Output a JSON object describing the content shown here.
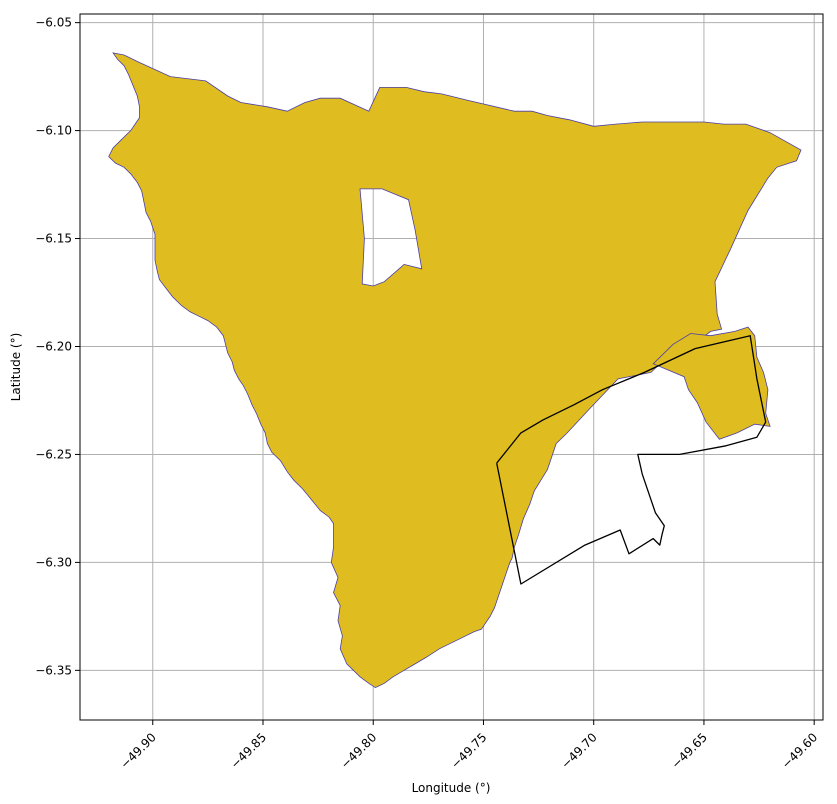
{
  "chart_data": {
    "type": "map",
    "xlabel": "Longitude (°)",
    "ylabel": "Latitude (°)",
    "xlim": [
      -49.933,
      -49.596
    ],
    "ylim": [
      -6.373,
      -6.046
    ],
    "grid": true,
    "x_ticks": [
      {
        "value": -49.9,
        "label": "−49.90"
      },
      {
        "value": -49.85,
        "label": "−49.85"
      },
      {
        "value": -49.8,
        "label": "−49.80"
      },
      {
        "value": -49.75,
        "label": "−49.75"
      },
      {
        "value": -49.7,
        "label": "−49.70"
      },
      {
        "value": -49.65,
        "label": "−49.65"
      },
      {
        "value": -49.6,
        "label": "−49.60"
      }
    ],
    "y_ticks": [
      {
        "value": -6.05,
        "label": "−6.05"
      },
      {
        "value": -6.1,
        "label": "−6.10"
      },
      {
        "value": -6.15,
        "label": "−6.15"
      },
      {
        "value": -6.2,
        "label": "−6.20"
      },
      {
        "value": -6.25,
        "label": "−6.25"
      },
      {
        "value": -6.3,
        "label": "−6.30"
      },
      {
        "value": -6.35,
        "label": "−6.35"
      }
    ],
    "colors": {
      "fill": "#dfbc1f",
      "fill_edge": "#4b3fa8",
      "outline": "#000000",
      "grid": "#b0b0b0"
    },
    "polygons": [
      {
        "kind": "main-region",
        "exterior": [
          [
            -49.918,
            -6.064
          ],
          [
            -49.913,
            -6.065
          ],
          [
            -49.907,
            -6.068
          ],
          [
            -49.892,
            -6.075
          ],
          [
            -49.876,
            -6.077
          ],
          [
            -49.866,
            -6.084
          ],
          [
            -49.86,
            -6.087
          ],
          [
            -49.848,
            -6.089
          ],
          [
            -49.839,
            -6.091
          ],
          [
            -49.831,
            -6.087
          ],
          [
            -49.824,
            -6.085
          ],
          [
            -49.815,
            -6.085
          ],
          [
            -49.802,
            -6.091
          ],
          [
            -49.797,
            -6.08
          ],
          [
            -49.785,
            -6.08
          ],
          [
            -49.777,
            -6.082
          ],
          [
            -49.769,
            -6.083
          ],
          [
            -49.757,
            -6.086
          ],
          [
            -49.736,
            -6.091
          ],
          [
            -49.728,
            -6.091
          ],
          [
            -49.721,
            -6.093
          ],
          [
            -49.711,
            -6.095
          ],
          [
            -49.7,
            -6.098
          ],
          [
            -49.69,
            -6.097
          ],
          [
            -49.678,
            -6.096
          ],
          [
            -49.662,
            -6.096
          ],
          [
            -49.65,
            -6.096
          ],
          [
            -49.641,
            -6.097
          ],
          [
            -49.631,
            -6.097
          ],
          [
            -49.62,
            -6.101
          ],
          [
            -49.606,
            -6.109
          ],
          [
            -49.608,
            -6.114
          ],
          [
            -49.617,
            -6.117
          ],
          [
            -49.621,
            -6.122
          ],
          [
            -49.63,
            -6.137
          ],
          [
            -49.638,
            -6.155
          ],
          [
            -49.645,
            -6.17
          ],
          [
            -49.644,
            -6.185
          ],
          [
            -49.642,
            -6.192
          ],
          [
            -49.647,
            -6.193
          ],
          [
            -49.652,
            -6.197
          ],
          [
            -49.657,
            -6.199
          ],
          [
            -49.662,
            -6.202
          ],
          [
            -49.668,
            -6.206
          ],
          [
            -49.674,
            -6.212
          ],
          [
            -49.689,
            -6.215
          ],
          [
            -49.702,
            -6.229
          ],
          [
            -49.712,
            -6.24
          ],
          [
            -49.717,
            -6.245
          ],
          [
            -49.719,
            -6.251
          ],
          [
            -49.721,
            -6.257
          ],
          [
            -49.724,
            -6.262
          ],
          [
            -49.727,
            -6.267
          ],
          [
            -49.729,
            -6.273
          ],
          [
            -49.732,
            -6.28
          ],
          [
            -49.734,
            -6.287
          ],
          [
            -49.736,
            -6.293
          ],
          [
            -49.737,
            -6.298
          ],
          [
            -49.738,
            -6.3
          ],
          [
            -49.74,
            -6.306
          ],
          [
            -49.742,
            -6.312
          ],
          [
            -49.744,
            -6.318
          ],
          [
            -49.745,
            -6.321
          ],
          [
            -49.747,
            -6.325
          ],
          [
            -49.749,
            -6.328
          ],
          [
            -49.751,
            -6.331
          ],
          [
            -49.754,
            -6.332
          ],
          [
            -49.758,
            -6.334
          ],
          [
            -49.764,
            -6.337
          ],
          [
            -49.77,
            -6.34
          ],
          [
            -49.776,
            -6.344
          ],
          [
            -49.781,
            -6.347
          ],
          [
            -49.786,
            -6.35
          ],
          [
            -49.791,
            -6.353
          ],
          [
            -49.795,
            -6.356
          ],
          [
            -49.799,
            -6.358
          ],
          [
            -49.802,
            -6.356
          ],
          [
            -49.806,
            -6.353
          ],
          [
            -49.809,
            -6.35
          ],
          [
            -49.812,
            -6.347
          ],
          [
            -49.815,
            -6.34
          ],
          [
            -49.814,
            -6.334
          ],
          [
            -49.816,
            -6.327
          ],
          [
            -49.815,
            -6.32
          ],
          [
            -49.818,
            -6.314
          ],
          [
            -49.816,
            -6.307
          ],
          [
            -49.819,
            -6.3
          ],
          [
            -49.818,
            -6.293
          ],
          [
            -49.818,
            -6.287
          ],
          [
            -49.818,
            -6.282
          ],
          [
            -49.82,
            -6.279
          ],
          [
            -49.824,
            -6.276
          ],
          [
            -49.828,
            -6.271
          ],
          [
            -49.832,
            -6.266
          ],
          [
            -49.836,
            -6.262
          ],
          [
            -49.839,
            -6.258
          ],
          [
            -49.842,
            -6.253
          ],
          [
            -49.846,
            -6.249
          ],
          [
            -49.848,
            -6.245
          ],
          [
            -49.849,
            -6.24
          ],
          [
            -49.851,
            -6.236
          ],
          [
            -49.853,
            -6.231
          ],
          [
            -49.855,
            -6.227
          ],
          [
            -49.857,
            -6.222
          ],
          [
            -49.859,
            -6.218
          ],
          [
            -49.861,
            -6.215
          ],
          [
            -49.863,
            -6.211
          ],
          [
            -49.864,
            -6.207
          ],
          [
            -49.866,
            -6.203
          ],
          [
            -49.867,
            -6.199
          ],
          [
            -49.868,
            -6.195
          ],
          [
            -49.871,
            -6.191
          ],
          [
            -49.875,
            -6.188
          ],
          [
            -49.879,
            -6.186
          ],
          [
            -49.883,
            -6.184
          ],
          [
            -49.887,
            -6.181
          ],
          [
            -49.891,
            -6.177
          ],
          [
            -49.894,
            -6.173
          ],
          [
            -49.897,
            -6.169
          ],
          [
            -49.898,
            -6.165
          ],
          [
            -49.899,
            -6.16
          ],
          [
            -49.899,
            -6.154
          ],
          [
            -49.899,
            -6.148
          ],
          [
            -49.901,
            -6.142
          ],
          [
            -49.903,
            -6.138
          ],
          [
            -49.904,
            -6.133
          ],
          [
            -49.905,
            -6.128
          ],
          [
            -49.907,
            -6.124
          ],
          [
            -49.91,
            -6.12
          ],
          [
            -49.913,
            -6.117
          ],
          [
            -49.917,
            -6.115
          ],
          [
            -49.92,
            -6.112
          ],
          [
            -49.918,
            -6.108
          ],
          [
            -49.914,
            -6.104
          ],
          [
            -49.91,
            -6.1
          ],
          [
            -49.908,
            -6.097
          ],
          [
            -49.906,
            -6.094
          ],
          [
            -49.906,
            -6.089
          ],
          [
            -49.907,
            -6.084
          ],
          [
            -49.909,
            -6.079
          ],
          [
            -49.911,
            -6.074
          ],
          [
            -49.913,
            -6.07
          ],
          [
            -49.916,
            -6.067
          ]
        ],
        "hole": [
          [
            -49.806,
            -6.127
          ],
          [
            -49.796,
            -6.127
          ],
          [
            -49.784,
            -6.132
          ],
          [
            -49.781,
            -6.146
          ],
          [
            -49.778,
            -6.164
          ],
          [
            -49.786,
            -6.162
          ],
          [
            -49.795,
            -6.17
          ],
          [
            -49.8,
            -6.172
          ],
          [
            -49.805,
            -6.171
          ],
          [
            -49.804,
            -6.15
          ]
        ]
      },
      {
        "kind": "east-region",
        "exterior": [
          [
            -49.673,
            -6.208
          ],
          [
            -49.664,
            -6.199
          ],
          [
            -49.656,
            -6.194
          ],
          [
            -49.647,
            -6.195
          ],
          [
            -49.636,
            -6.193
          ],
          [
            -49.63,
            -6.191
          ],
          [
            -49.627,
            -6.195
          ],
          [
            -49.626,
            -6.205
          ],
          [
            -49.623,
            -6.212
          ],
          [
            -49.621,
            -6.22
          ],
          [
            -49.622,
            -6.231
          ],
          [
            -49.62,
            -6.237
          ],
          [
            -49.627,
            -6.236
          ],
          [
            -49.635,
            -6.24
          ],
          [
            -49.643,
            -6.243
          ],
          [
            -49.649,
            -6.235
          ],
          [
            -49.653,
            -6.226
          ],
          [
            -49.657,
            -6.22
          ],
          [
            -49.659,
            -6.214
          ]
        ]
      }
    ],
    "outline": [
      [
        -49.744,
        -6.254
      ],
      [
        -49.733,
        -6.31
      ],
      [
        -49.704,
        -6.292
      ],
      [
        -49.688,
        -6.285
      ],
      [
        -49.684,
        -6.296
      ],
      [
        -49.673,
        -6.289
      ],
      [
        -49.67,
        -6.292
      ],
      [
        -49.669,
        -6.287
      ],
      [
        -49.668,
        -6.283
      ],
      [
        -49.672,
        -6.277
      ],
      [
        -49.674,
        -6.271
      ],
      [
        -49.678,
        -6.259
      ],
      [
        -49.68,
        -6.25
      ],
      [
        -49.661,
        -6.25
      ],
      [
        -49.64,
        -6.246
      ],
      [
        -49.626,
        -6.242
      ],
      [
        -49.622,
        -6.235
      ],
      [
        -49.626,
        -6.215
      ],
      [
        -49.629,
        -6.195
      ],
      [
        -49.654,
        -6.201
      ],
      [
        -49.677,
        -6.212
      ],
      [
        -49.696,
        -6.22
      ],
      [
        -49.709,
        -6.227
      ],
      [
        -49.723,
        -6.234
      ],
      [
        -49.733,
        -6.24
      ],
      [
        -49.744,
        -6.254
      ]
    ]
  }
}
